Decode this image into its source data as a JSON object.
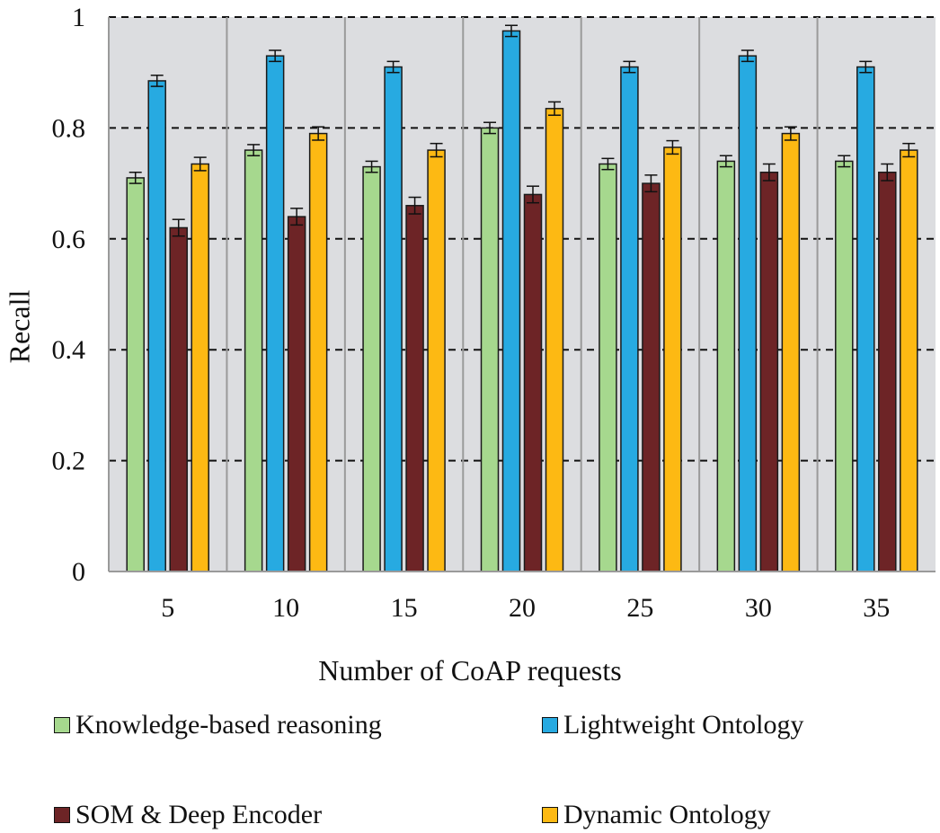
{
  "chart_data": {
    "type": "bar",
    "title": "",
    "xlabel": "Number of CoAP requests",
    "ylabel": "Recall",
    "ylim": [
      0,
      1
    ],
    "yticks": [
      "0",
      "0.2",
      "0.4",
      "0.6",
      "0.8",
      "1"
    ],
    "ytick_values": [
      0,
      0.2,
      0.4,
      0.6,
      0.8,
      1
    ],
    "categories": [
      "5",
      "10",
      "15",
      "20",
      "25",
      "30",
      "35"
    ],
    "grid": "dashed horizontal",
    "legend_position": "bottom",
    "series": [
      {
        "name": "Knowledge-based reasoning",
        "color": "#a6d88e",
        "values": [
          0.71,
          0.76,
          0.73,
          0.8,
          0.735,
          0.74,
          0.74
        ],
        "error": 0.01
      },
      {
        "name": "Lightweight Ontology",
        "color": "#27aae1",
        "values": [
          0.885,
          0.93,
          0.91,
          0.975,
          0.91,
          0.93,
          0.91
        ],
        "error": 0.01
      },
      {
        "name": "SOM & Deep Encoder",
        "color": "#6d2426",
        "values": [
          0.62,
          0.64,
          0.66,
          0.68,
          0.7,
          0.72,
          0.72
        ],
        "error": 0.015
      },
      {
        "name": "Dynamic Ontology",
        "color": "#fdb913",
        "values": [
          0.735,
          0.79,
          0.76,
          0.835,
          0.765,
          0.79,
          0.76
        ],
        "error": 0.012
      }
    ]
  }
}
